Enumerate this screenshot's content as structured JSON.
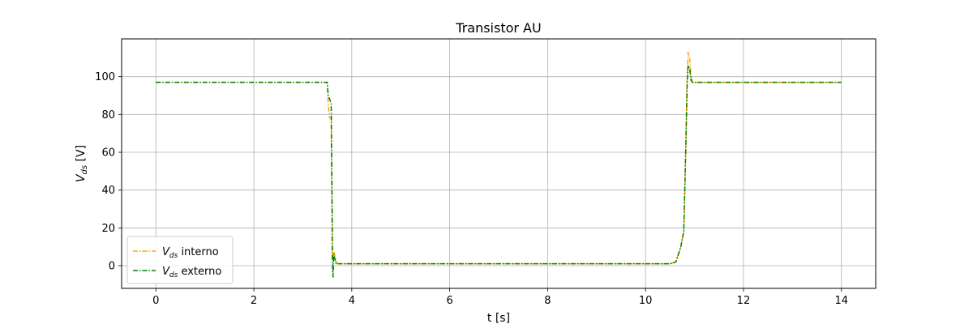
{
  "chart_data": {
    "type": "line",
    "title": "Transistor AU",
    "xlabel": "t [s]",
    "ylabel": {
      "base": "V",
      "sub": "ds",
      "unit": " [V]"
    },
    "xlim": [
      -0.7,
      14.7
    ],
    "ylim": [
      -12,
      120
    ],
    "xticks": [
      0,
      2,
      4,
      6,
      8,
      10,
      12,
      14
    ],
    "yticks": [
      0,
      20,
      40,
      60,
      80,
      100
    ],
    "grid": true,
    "legend_position": "lower-left",
    "series": [
      {
        "name": {
          "base": "V",
          "sub": "ds",
          "suffix": " interno"
        },
        "color": "#ffa500",
        "x": [
          0,
          3.5,
          3.52,
          3.55,
          3.58,
          3.6,
          3.62,
          3.64,
          3.67,
          3.7,
          3.75,
          4,
          6,
          8,
          10,
          10.5,
          10.62,
          10.72,
          10.78,
          10.82,
          10.85,
          10.87,
          10.9,
          10.93,
          10.96,
          11.0,
          11.1,
          12,
          14
        ],
        "y": [
          97,
          97,
          85,
          78,
          78,
          4,
          5,
          7,
          3,
          1,
          1,
          1,
          1,
          1,
          1,
          1,
          2,
          10,
          18,
          60,
          100,
          113,
          110,
          100,
          97,
          97,
          97,
          97,
          97
        ]
      },
      {
        "name": {
          "base": "V",
          "sub": "ds",
          "suffix": " externo"
        },
        "color": "#008000",
        "x": [
          0,
          3.5,
          3.52,
          3.55,
          3.58,
          3.6,
          3.61,
          3.62,
          3.63,
          3.65,
          3.68,
          3.72,
          3.8,
          4,
          6,
          8,
          10,
          10.5,
          10.62,
          10.72,
          10.78,
          10.82,
          10.85,
          10.87,
          10.9,
          10.93,
          10.96,
          11.0,
          11.1,
          12,
          14
        ],
        "y": [
          97,
          97,
          90,
          88,
          86,
          30,
          -4,
          -6,
          6,
          4,
          1,
          1,
          1,
          1,
          1,
          1,
          1,
          1,
          2,
          10,
          18,
          60,
          97,
          106,
          104,
          98,
          97,
          97,
          97,
          97,
          97
        ]
      }
    ]
  }
}
